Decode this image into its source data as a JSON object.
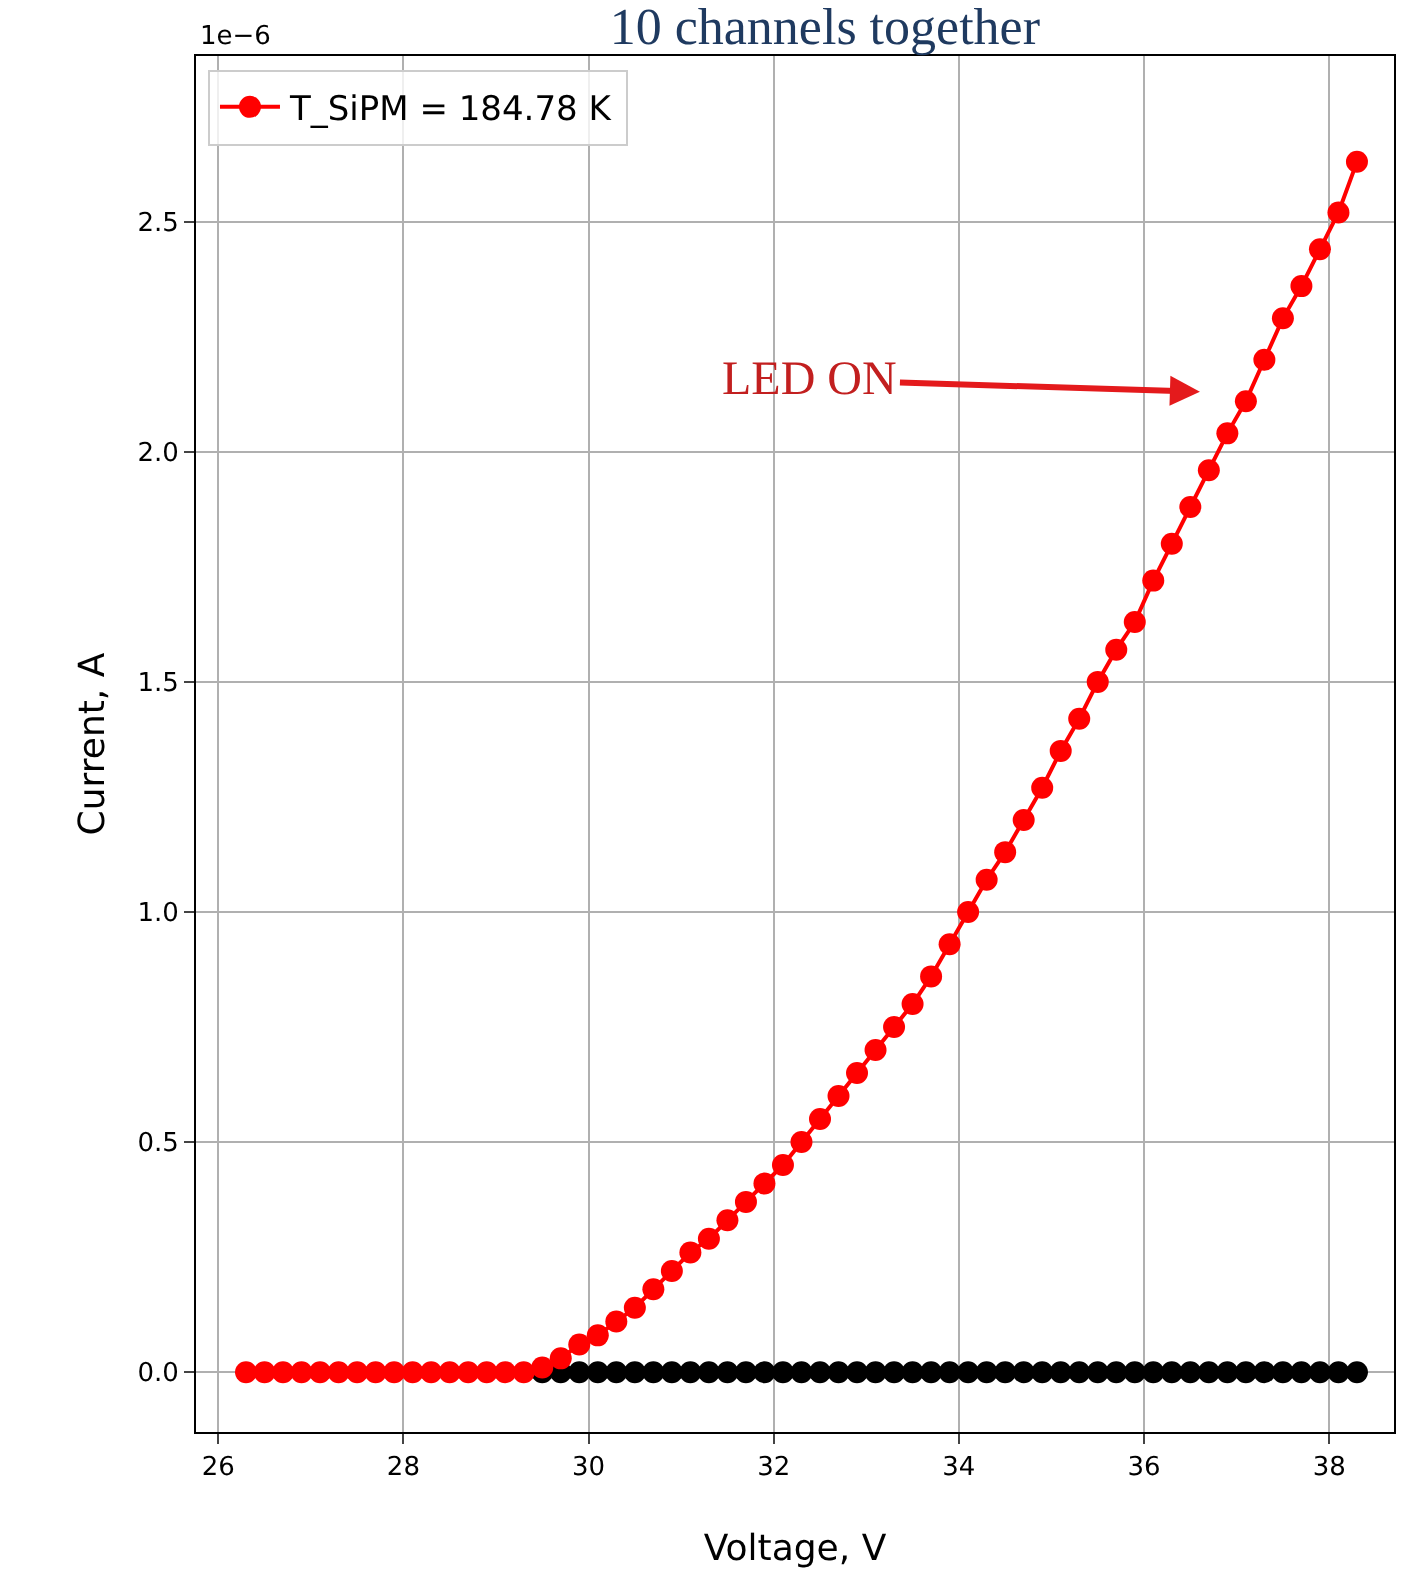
{
  "chart_data": {
    "type": "line",
    "title": "10 channels together",
    "xlabel": "Voltage, V",
    "ylabel": "Current, A",
    "annotations": [
      "1e−6",
      "LED ON"
    ],
    "x": [
      26.3,
      26.5,
      26.7,
      26.9,
      27.1,
      27.3,
      27.5,
      27.7,
      27.9,
      28.1,
      28.3,
      28.5,
      28.7,
      28.9,
      29.1,
      29.3,
      29.5,
      29.7,
      29.9,
      30.1,
      30.3,
      30.5,
      30.7,
      30.9,
      31.1,
      31.3,
      31.5,
      31.7,
      31.9,
      32.1,
      32.3,
      32.5,
      32.7,
      32.9,
      33.1,
      33.3,
      33.5,
      33.7,
      33.9,
      34.1,
      34.3,
      34.5,
      34.7,
      34.9,
      35.1,
      35.3,
      35.5,
      35.7,
      35.9,
      36.1,
      36.3,
      36.5,
      36.7,
      36.9,
      37.1,
      37.3,
      37.5,
      37.7,
      37.9,
      38.1,
      38.3
    ],
    "series": [
      {
        "type": "scatter",
        "color": "#000000",
        "values": [
          null,
          null,
          null,
          null,
          null,
          null,
          null,
          null,
          null,
          null,
          null,
          null,
          null,
          null,
          null,
          null,
          0,
          0,
          0,
          0,
          0,
          0,
          0,
          0,
          0,
          0,
          0,
          0,
          0,
          0,
          0,
          0,
          0,
          0,
          0,
          0,
          0,
          0,
          0,
          0,
          0,
          0,
          0,
          0,
          0,
          0,
          0,
          0,
          0,
          0,
          0,
          0,
          0,
          0,
          0,
          0,
          0,
          0,
          0,
          0,
          0
        ]
      },
      {
        "name": "T_SiPM = 184.78 K",
        "color": "#ff0000",
        "values": [
          0,
          0,
          0,
          0,
          0,
          0,
          0,
          0,
          0,
          0,
          0,
          0,
          0,
          0,
          0,
          0,
          0.01,
          0.03,
          0.06,
          0.08,
          0.11,
          0.14,
          0.18,
          0.22,
          0.26,
          0.29,
          0.33,
          0.37,
          0.41,
          0.45,
          0.5,
          0.55,
          0.6,
          0.65,
          0.7,
          0.75,
          0.8,
          0.86,
          0.93,
          1.0,
          1.07,
          1.13,
          1.2,
          1.27,
          1.35,
          1.42,
          1.5,
          1.57,
          1.63,
          1.72,
          1.8,
          1.88,
          1.96,
          2.04,
          2.11,
          2.2,
          2.29,
          2.36,
          2.44,
          2.52,
          2.63
        ]
      }
    ],
    "xlim": [
      25.76,
      38.7
    ],
    "xticks": [
      26,
      28,
      30,
      32,
      34,
      36,
      38
    ],
    "ylim": [
      -0.13,
      2.86
    ],
    "yticks": [
      {
        "value": 0,
        "label": "0.0"
      },
      {
        "value": 0.5,
        "label": "0.5"
      },
      {
        "value": 1,
        "label": "1.0"
      },
      {
        "value": 1.5,
        "label": "1.5"
      },
      {
        "value": 2,
        "label": "2.0"
      },
      {
        "value": 2.5,
        "label": "2.5"
      }
    ],
    "grid": true,
    "legend": "top left",
    "marker": "circle",
    "line_style": "solid"
  }
}
